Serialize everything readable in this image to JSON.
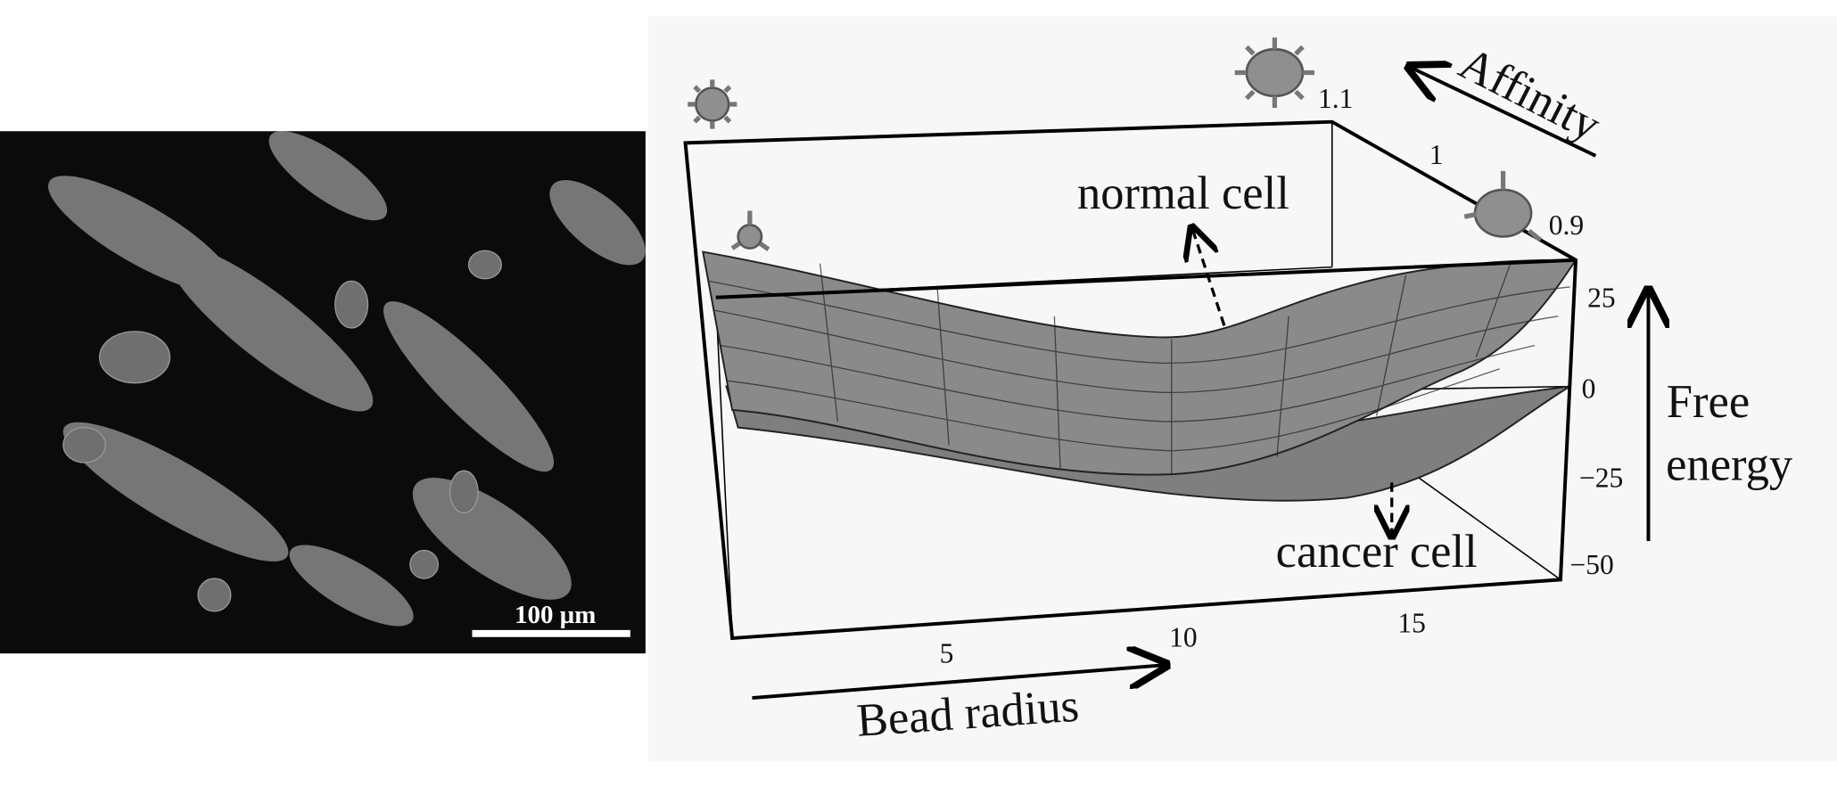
{
  "micrograph": {
    "scale_bar": "100 µm"
  },
  "plot": {
    "labels": {
      "affinity": "Affinity",
      "normal": "normal cell",
      "cancer": "cancer cell",
      "free_energy": [
        "Free",
        "energy"
      ],
      "bead_radius": "Bead radius"
    },
    "ticks": {
      "bead_radius": [
        "5",
        "10",
        "15"
      ],
      "free_energy": [
        "25",
        "0",
        "−25",
        "−50"
      ],
      "affinity": [
        "1.1",
        "1",
        "0.9"
      ]
    }
  }
}
